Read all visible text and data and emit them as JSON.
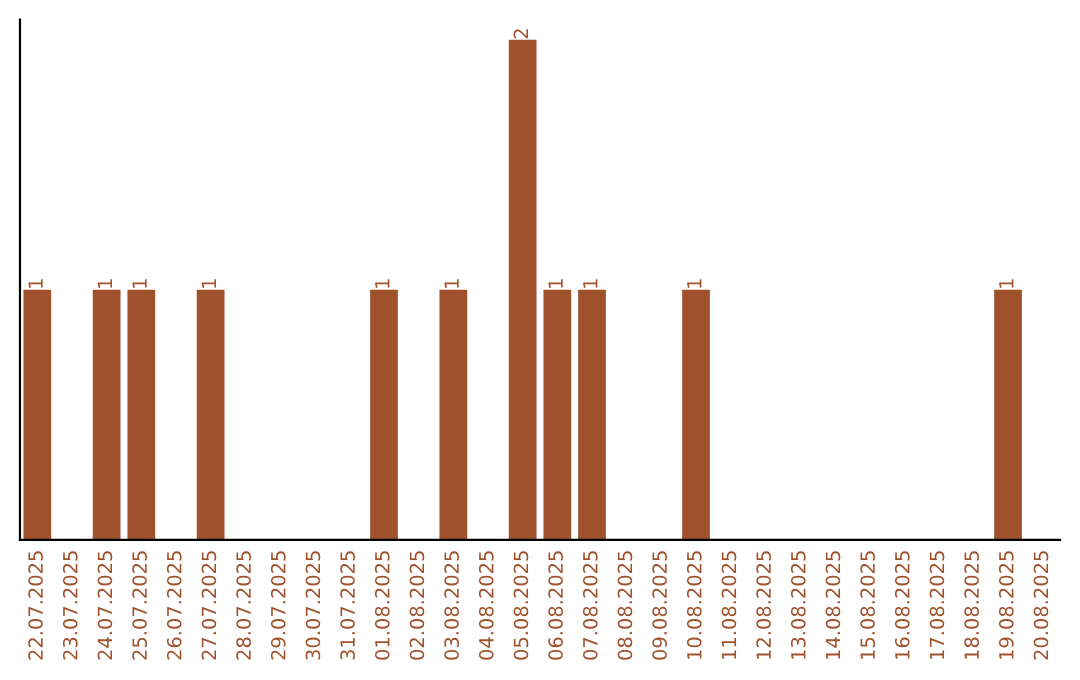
{
  "chart_data": {
    "type": "bar",
    "categories": [
      "22.07.2025",
      "23.07.2025",
      "24.07.2025",
      "25.07.2025",
      "26.07.2025",
      "27.07.2025",
      "28.07.2025",
      "29.07.2025",
      "30.07.2025",
      "31.07.2025",
      "01.08.2025",
      "02.08.2025",
      "03.08.2025",
      "04.08.2025",
      "05.08.2025",
      "06.08.2025",
      "07.08.2025",
      "08.08.2025",
      "09.08.2025",
      "10.08.2025",
      "11.08.2025",
      "12.08.2025",
      "13.08.2025",
      "14.08.2025",
      "15.08.2025",
      "16.08.2025",
      "17.08.2025",
      "18.08.2025",
      "19.08.2025",
      "20.08.2025"
    ],
    "values": [
      1,
      0,
      1,
      1,
      0,
      1,
      0,
      0,
      0,
      0,
      1,
      0,
      1,
      0,
      2,
      1,
      1,
      0,
      0,
      1,
      0,
      0,
      0,
      0,
      0,
      0,
      0,
      0,
      1,
      0
    ],
    "value_labels": [
      "1",
      null,
      "1",
      "1",
      null,
      "1",
      null,
      null,
      null,
      null,
      "1",
      null,
      "1",
      null,
      "2",
      "1",
      "1",
      null,
      null,
      "1",
      null,
      null,
      null,
      null,
      null,
      null,
      null,
      null,
      "1",
      null
    ],
    "color": "#a0522d",
    "tick_labels": "x",
    "grid": false,
    "legend": false
  }
}
